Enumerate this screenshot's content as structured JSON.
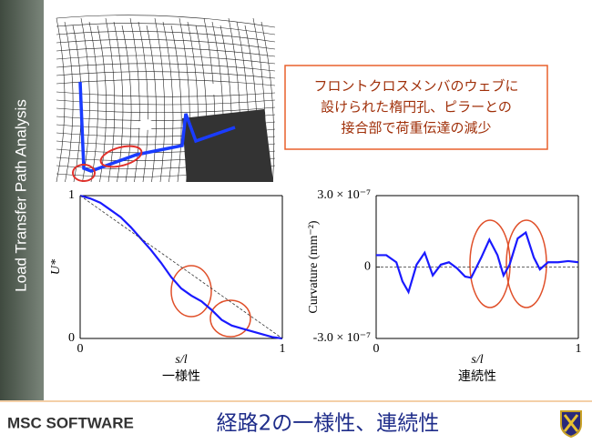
{
  "sidebar": "Load Transfer Path Analysis",
  "callout": [
    "フロントクロスメンバのウェブに",
    "設けられた楕円孔、ピラーとの",
    "接合部で荷重伝達の減少"
  ],
  "footer": {
    "title": "経路2の一様性、連続性",
    "logo": "MSC SOFTWARE"
  },
  "chart_data": [
    {
      "type": "line",
      "ylabel": "U*",
      "xlabel": "s/l",
      "caption": "一様性",
      "xlim": [
        0,
        1
      ],
      "ylim": [
        0,
        1
      ],
      "xticks": [
        0,
        1
      ],
      "yticks": [
        0,
        1
      ],
      "series": [
        {
          "color": "#1a1aff",
          "x": [
            0,
            0.05,
            0.1,
            0.15,
            0.2,
            0.25,
            0.3,
            0.35,
            0.4,
            0.45,
            0.5,
            0.55,
            0.6,
            0.65,
            0.7,
            0.75,
            0.8,
            0.85,
            0.9,
            0.95,
            1
          ],
          "values": [
            1,
            0.98,
            0.95,
            0.9,
            0.85,
            0.78,
            0.7,
            0.62,
            0.53,
            0.43,
            0.35,
            0.3,
            0.26,
            0.2,
            0.13,
            0.09,
            0.07,
            0.05,
            0.03,
            0.01,
            0
          ]
        },
        {
          "color": "#333333",
          "dashed": true,
          "x": [
            0,
            1
          ],
          "values": [
            1,
            0
          ]
        }
      ]
    },
    {
      "type": "line",
      "ylabel": "Curvature (mm⁻²)",
      "xlabel": "s/l",
      "caption": "連続性",
      "xlim": [
        0,
        1
      ],
      "ylim": [
        -3e-07,
        3e-07
      ],
      "xticks": [
        0,
        1
      ],
      "yticks": [
        {
          "value": -3e-07,
          "label": "-3.0 × 10⁻⁷"
        },
        0,
        {
          "value": 3e-07,
          "label": "3.0 × 10⁻⁷"
        }
      ],
      "series": [
        {
          "color": "#1a1aff",
          "x": [
            0,
            0.05,
            0.1,
            0.13,
            0.16,
            0.2,
            0.24,
            0.28,
            0.32,
            0.36,
            0.4,
            0.44,
            0.47,
            0.52,
            0.56,
            0.6,
            0.63,
            0.66,
            0.7,
            0.74,
            0.78,
            0.81,
            0.85,
            0.9,
            0.95,
            1
          ],
          "values": [
            5e-08,
            5e-08,
            2e-08,
            -6e-08,
            -1.05e-07,
            1e-08,
            6e-08,
            -3.5e-08,
            1e-08,
            2e-08,
            -5e-09,
            -4e-08,
            -4.5e-08,
            4e-08,
            1.15e-07,
            5e-08,
            -3.5e-08,
            1e-08,
            1.2e-07,
            1.45e-07,
            4e-08,
            -1e-08,
            2e-08,
            2e-08,
            2.5e-08,
            2e-08
          ]
        }
      ]
    }
  ]
}
